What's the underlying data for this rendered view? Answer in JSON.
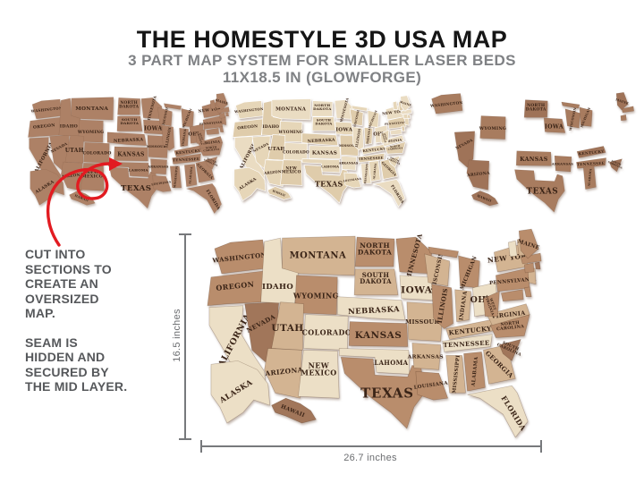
{
  "header": {
    "title": "THE HOMESTYLE 3D USA MAP",
    "subtitle1": "3 PART MAP SYSTEM FOR SMALLER LASER BEDS",
    "subtitle2": "11X18.5 IN (GLOWFORGE)"
  },
  "side_notes": {
    "note1": "CUT INTO SECTIONS TO CREATE AN OVERSIZED MAP.",
    "note2": "SEAM IS HIDDEN AND SECURED BY THE MID LAYER."
  },
  "dimensions": {
    "height_label": "16.5 inches",
    "width_label": "26.7 inches"
  },
  "palette": {
    "title_black": "#161616",
    "subtitle_gray": "#7f8184",
    "note_gray": "#56585b",
    "dim_gray": "#77797c",
    "accent_red": "#e21b21",
    "label_ink": "#3a2417",
    "wood_cream": "#ecdfc6",
    "wood_tan": "#d3b492",
    "wood_brown": "#b98d6c",
    "wood_dark": "#a1765a",
    "piece_brown": "#ad8166",
    "top_cream_a": "#e6d6b8",
    "top_cream_b": "#dfccab",
    "top_cream_c": "#eadcc2",
    "mid_brown_a": "#a87c5f",
    "mid_brown_b": "#9f7358"
  },
  "large_map": {
    "states": [
      {
        "id": "WA",
        "label": "WASHINGTON",
        "tone": "brown"
      },
      {
        "id": "OR",
        "label": "OREGON",
        "tone": "brown"
      },
      {
        "id": "CA",
        "label": "CALIFORNIA",
        "tone": "cream"
      },
      {
        "id": "NV",
        "label": "NEVADA",
        "tone": "dark"
      },
      {
        "id": "ID",
        "label": "IDAHO",
        "tone": "cream"
      },
      {
        "id": "MT",
        "label": "MONTANA",
        "tone": "tan"
      },
      {
        "id": "WY",
        "label": "WYOMING",
        "tone": "brown"
      },
      {
        "id": "UT",
        "label": "UTAH",
        "tone": "tan"
      },
      {
        "id": "CO",
        "label": "COLORADO",
        "tone": "cream"
      },
      {
        "id": "AZ",
        "label": "ARIZONA",
        "tone": "tan"
      },
      {
        "id": "NM",
        "label": "NEW|MEXICO",
        "tone": "cream"
      },
      {
        "id": "ND",
        "label": "NORTH|DAKOTA",
        "tone": "brown"
      },
      {
        "id": "SD",
        "label": "SOUTH|DAKOTA",
        "tone": "tan"
      },
      {
        "id": "NE",
        "label": "NEBRASKA",
        "tone": "cream"
      },
      {
        "id": "KS",
        "label": "KANSAS",
        "tone": "brown"
      },
      {
        "id": "OK",
        "label": "OKLAHOMA",
        "tone": "cream"
      },
      {
        "id": "TX",
        "label": "TEXAS",
        "tone": "brown"
      },
      {
        "id": "MN",
        "label": "MINNESOTA",
        "tone": "brown"
      },
      {
        "id": "IA",
        "label": "IOWA",
        "tone": "cream"
      },
      {
        "id": "MO",
        "label": "MISSOURI",
        "tone": "tan"
      },
      {
        "id": "AR",
        "label": "ARKANSAS",
        "tone": "tan"
      },
      {
        "id": "LA",
        "label": "LOUISIANA",
        "tone": "brown"
      },
      {
        "id": "WI",
        "label": "WISCONSIN",
        "tone": "tan"
      },
      {
        "id": "IL",
        "label": "ILLINOIS",
        "tone": "brown"
      },
      {
        "id": "MI",
        "label": "MICHIGAN",
        "tone": "brown"
      },
      {
        "id": "IN",
        "label": "INDIANA",
        "tone": "tan"
      },
      {
        "id": "OH",
        "label": "OHIO",
        "tone": "cream"
      },
      {
        "id": "KY",
        "label": "KENTUCKY",
        "tone": "tan"
      },
      {
        "id": "TN",
        "label": "TENNESSEE",
        "tone": "cream"
      },
      {
        "id": "MS",
        "label": "MISSISSIPPI",
        "tone": "tan"
      },
      {
        "id": "AL",
        "label": "ALABAMA",
        "tone": "brown"
      },
      {
        "id": "GA",
        "label": "GEORGIA",
        "tone": "tan"
      },
      {
        "id": "FL",
        "label": "FLORIDA",
        "tone": "cream"
      },
      {
        "id": "SC",
        "label": "SOUTH|CAROLINA",
        "tone": "dark"
      },
      {
        "id": "NC",
        "label": "NORTH|CAROLINA",
        "tone": "brown"
      },
      {
        "id": "VA",
        "label": "VIRGINIA",
        "tone": "tan"
      },
      {
        "id": "WV",
        "label": "WEST|VIRGINIA",
        "tone": "brown"
      },
      {
        "id": "PA",
        "label": "PENNSYLVANIA",
        "tone": "brown"
      },
      {
        "id": "NY",
        "label": "NEW YORK",
        "tone": "tan"
      },
      {
        "id": "NJ",
        "label": "",
        "tone": "tan"
      },
      {
        "id": "DE",
        "label": "",
        "tone": "brown"
      },
      {
        "id": "MD",
        "label": "",
        "tone": "brown"
      },
      {
        "id": "CT",
        "label": "",
        "tone": "brown"
      },
      {
        "id": "RI",
        "label": "",
        "tone": "dark"
      },
      {
        "id": "MA",
        "label": "",
        "tone": "brown"
      },
      {
        "id": "VT",
        "label": "",
        "tone": "cream"
      },
      {
        "id": "NH",
        "label": "",
        "tone": "tan"
      },
      {
        "id": "ME",
        "label": "MAINE",
        "tone": "brown"
      },
      {
        "id": "AK",
        "label": "ALASKA",
        "tone": "cream"
      },
      {
        "id": "HI",
        "label": "HAWAII",
        "tone": "dark"
      }
    ]
  },
  "sections_map": {
    "piece2": [
      "ND",
      "SD",
      "NE",
      "KS",
      "OK",
      "TX",
      "MN",
      "IA",
      "MO",
      "AR",
      "LA",
      "WI",
      "IL",
      "MS",
      "HI"
    ],
    "piece3": [
      "MI",
      "IN",
      "OH",
      "KY",
      "TN",
      "AL",
      "GA",
      "FL",
      "SC",
      "NC",
      "VA",
      "WV",
      "PA",
      "NY",
      "NJ",
      "DE",
      "MD",
      "CT",
      "RI",
      "MA",
      "VT",
      "NH",
      "ME"
    ]
  },
  "scattered_map": {
    "states": [
      "WA",
      "NV",
      "AZ",
      "WY",
      "ND",
      "IA",
      "KS",
      "TX",
      "MI",
      "WI",
      "KY",
      "TN",
      "SC",
      "AL",
      "AR",
      "ME",
      "MA",
      "CT",
      "HI"
    ]
  }
}
